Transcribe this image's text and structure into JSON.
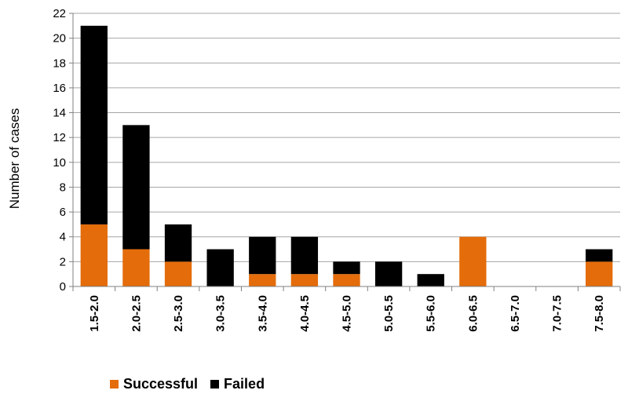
{
  "chart_data": {
    "type": "bar",
    "stacked": true,
    "categories": [
      "1.5-2.0",
      "2.0-2.5",
      "2.5-3.0",
      "3.0-3.5",
      "3.5-4.0",
      "4.0-4.5",
      "4.5-5.0",
      "5.0-5.5",
      "5.5-6.0",
      "6.0-6.5",
      "6.5-7.0",
      "7.0-7.5",
      "7.5-8.0"
    ],
    "series": [
      {
        "name": "Successful",
        "color": "#E46C0A",
        "values": [
          5,
          3,
          2,
          0,
          1,
          1,
          1,
          0,
          0,
          4,
          0,
          0,
          2
        ]
      },
      {
        "name": "Failed",
        "color": "#000000",
        "values": [
          16,
          10,
          3,
          3,
          3,
          3,
          1,
          2,
          1,
          0,
          0,
          0,
          1
        ]
      }
    ],
    "title": "",
    "xlabel": "",
    "ylabel": "Number of cases",
    "ylim": [
      0,
      22
    ],
    "yticks": [
      0,
      2,
      4,
      6,
      8,
      10,
      12,
      14,
      16,
      18,
      20,
      22
    ],
    "grid": true,
    "legend_position": "bottom"
  }
}
